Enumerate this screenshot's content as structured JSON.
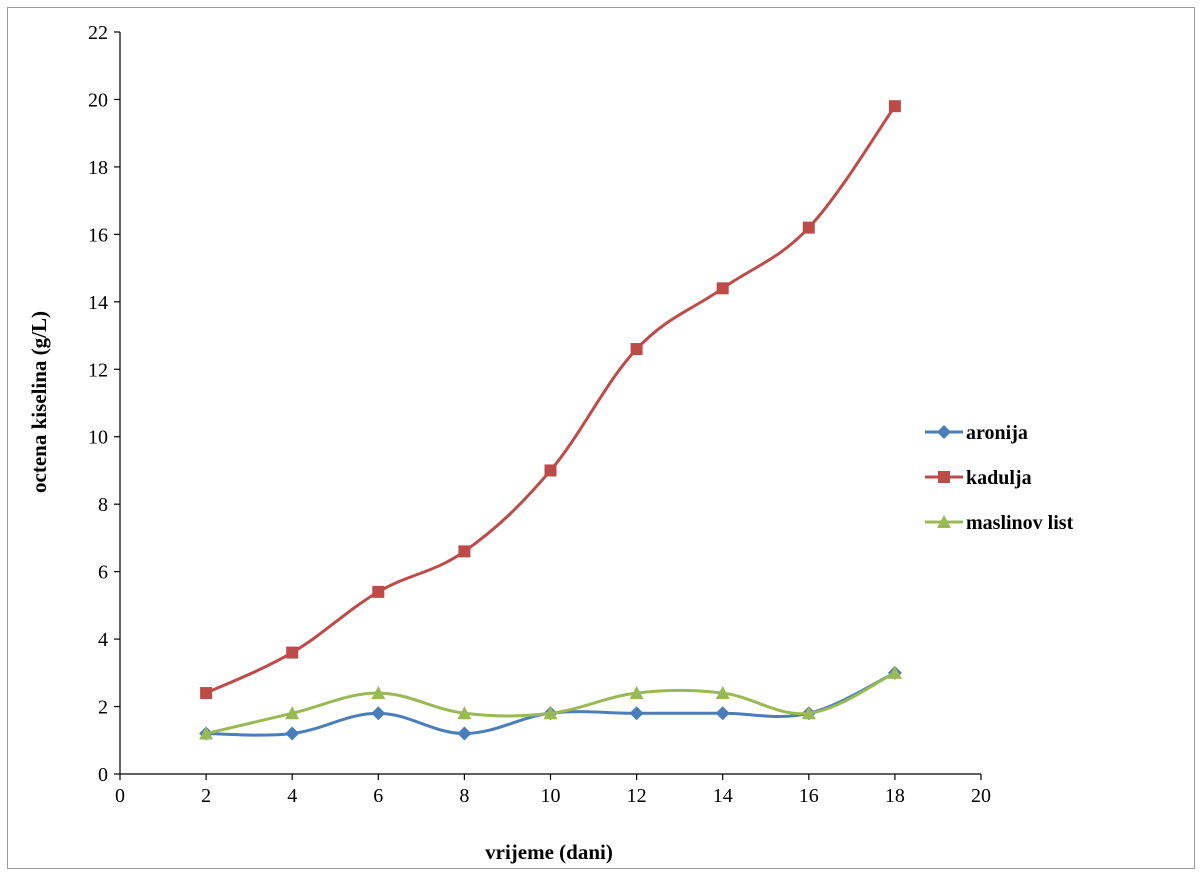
{
  "chart_data": {
    "type": "line",
    "xlabel": "vrijeme (dani)",
    "ylabel": "octena kiselina (g/L)",
    "xlim": [
      0,
      20
    ],
    "ylim": [
      0,
      22
    ],
    "x_ticks": [
      0,
      2,
      4,
      6,
      8,
      10,
      12,
      14,
      16,
      18,
      20
    ],
    "y_ticks": [
      0,
      2,
      4,
      6,
      8,
      10,
      12,
      14,
      16,
      18,
      20,
      22
    ],
    "grid": false,
    "smooth": true,
    "legend_position": "right",
    "x": [
      2,
      4,
      6,
      8,
      10,
      12,
      14,
      16,
      18
    ],
    "series": [
      {
        "name": "aronija",
        "color": "#4a7ebb",
        "marker": "diamond",
        "values": [
          1.2,
          1.2,
          1.8,
          1.2,
          1.8,
          1.8,
          1.8,
          1.8,
          3.0
        ]
      },
      {
        "name": "kadulja",
        "color": "#be4b48",
        "marker": "square",
        "values": [
          2.4,
          3.6,
          5.4,
          6.6,
          9.0,
          12.6,
          14.4,
          16.2,
          19.8
        ]
      },
      {
        "name": "maslinov list",
        "color": "#98b954",
        "marker": "triangle",
        "values": [
          1.2,
          1.8,
          2.4,
          1.8,
          1.8,
          2.4,
          2.4,
          1.8,
          3.0
        ]
      }
    ]
  }
}
